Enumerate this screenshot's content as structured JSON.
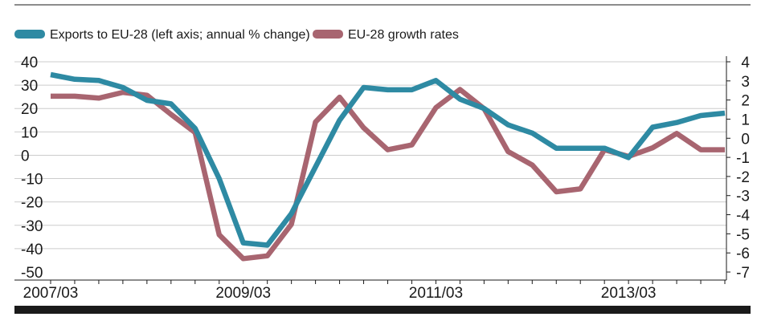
{
  "chart_data": {
    "type": "line",
    "title": "",
    "xlabel": "",
    "ylabel": "",
    "x_tick_labels": [
      "2007/03",
      "2009/03",
      "2011/03",
      "2013/03"
    ],
    "x_tick_quarter_index": [
      0,
      8,
      16,
      24
    ],
    "x": [
      "2007/03",
      "2007/06",
      "2007/09",
      "2007/12",
      "2008/03",
      "2008/06",
      "2008/09",
      "2008/12",
      "2009/03",
      "2009/06",
      "2009/09",
      "2009/12",
      "2010/03",
      "2010/06",
      "2010/09",
      "2010/12",
      "2011/03",
      "2011/06",
      "2011/09",
      "2011/12",
      "2012/03",
      "2012/06",
      "2012/09",
      "2012/12",
      "2013/03",
      "2013/06",
      "2013/09",
      "2013/12",
      "2014/03"
    ],
    "left_axis": {
      "ylim": [
        -50,
        40
      ],
      "ticks": [
        40,
        30,
        20,
        10,
        0,
        -10,
        -20,
        -30,
        -40,
        -50
      ],
      "tick_labels": [
        "40",
        "30",
        "20",
        "10",
        "0",
        "-10",
        "-20",
        "-30",
        "-40",
        "-50"
      ]
    },
    "right_axis": {
      "ylim": [
        -7,
        4
      ],
      "ticks": [
        4,
        3,
        2,
        1,
        0,
        -1,
        -2,
        -3,
        -4,
        -5,
        -6,
        -7
      ],
      "tick_labels": [
        "4",
        "3",
        "2",
        "1",
        "0",
        "-1",
        "-2",
        "-3",
        "-4",
        "-5",
        "-6",
        "-7"
      ]
    },
    "grid": {
      "horizontal": true,
      "color": "#cccccc"
    },
    "legend_position": "top-left",
    "series": [
      {
        "name": "Exports to EU-28 (left axis; annual % change)",
        "axis": "left",
        "color": "#2e8aa3",
        "values": [
          34.5,
          32.5,
          32,
          29,
          23.5,
          22,
          11.5,
          -10,
          -37.5,
          -38.5,
          -25,
          -5,
          15,
          29,
          28,
          28,
          32,
          24,
          20,
          13,
          9.5,
          3,
          3,
          3,
          -1,
          12,
          14,
          17,
          18
        ]
      },
      {
        "name": "EU-28 growth rates",
        "axis": "right",
        "color": "#a86570",
        "values": [
          2.2,
          2.2,
          2.1,
          2.4,
          2.25,
          1.25,
          0.3,
          -5.05,
          -6.3,
          -6.15,
          -4.5,
          0.85,
          2.15,
          0.55,
          -0.6,
          -0.35,
          1.6,
          2.55,
          1.55,
          -0.7,
          -1.4,
          -2.8,
          -2.65,
          -0.6,
          -0.95,
          -0.5,
          0.25,
          -0.6,
          -0.6
        ]
      }
    ]
  },
  "legend": [
    {
      "label": "Exports to EU-28 (left axis; annual % change)",
      "color": "#2e8aa3"
    },
    {
      "label": "EU-28 growth rates",
      "color": "#a86570"
    }
  ]
}
